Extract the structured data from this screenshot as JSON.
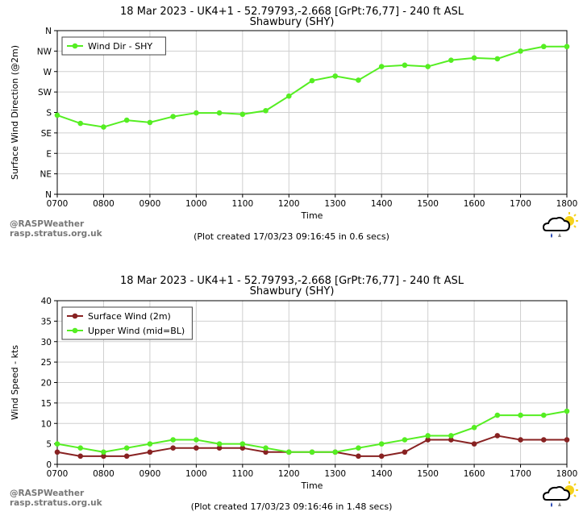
{
  "watermark": {
    "line1": "@RASPWeather",
    "line2": "rasp.stratus.org.uk"
  },
  "chart_data": [
    {
      "type": "line",
      "title": "18 Mar 2023 - UK4+1 - 52.79793,-2.668 [GrPt:76,77]  - 240 ft ASL",
      "subtitle": "Shawbury (SHY)",
      "xlabel": "Time",
      "ylabel": "Surface Wind Direction (@2m)",
      "x": [
        "0700",
        "0730",
        "0800",
        "0830",
        "0900",
        "0930",
        "1000",
        "1030",
        "1100",
        "1130",
        "1200",
        "1230",
        "1300",
        "1330",
        "1400",
        "1430",
        "1500",
        "1530",
        "1600",
        "1630",
        "1700",
        "1730",
        "1800"
      ],
      "x_tick_labels": [
        "0700",
        "0800",
        "0900",
        "1000",
        "1100",
        "1200",
        "1300",
        "1400",
        "1500",
        "1600",
        "1700",
        "1800"
      ],
      "ylim": [
        0,
        360
      ],
      "y_tick_values": [
        0,
        45,
        90,
        135,
        180,
        225,
        270,
        315,
        360
      ],
      "y_tick_labels": [
        "N",
        "NE",
        "E",
        "SE",
        "S",
        "SW",
        "W",
        "NW",
        "N"
      ],
      "grid": true,
      "legend_position": "top-left",
      "series": [
        {
          "name": "Wind Dir - SHY",
          "color": "#55ee22",
          "values": [
            174,
            156,
            148,
            163,
            158,
            171,
            179,
            179,
            176,
            184,
            216,
            250,
            260,
            251,
            281,
            284,
            281,
            295,
            300,
            298,
            315,
            325,
            325
          ]
        }
      ],
      "footer": "(Plot created 17/03/23 09:16:45 in 0.6 secs)"
    },
    {
      "type": "line",
      "title": "18 Mar 2023 - UK4+1 - 52.79793,-2.668 [GrPt:76,77]  - 240 ft ASL",
      "subtitle": "Shawbury (SHY)",
      "xlabel": "Time",
      "ylabel": "Wind Speed - kts",
      "x": [
        "0700",
        "0730",
        "0800",
        "0830",
        "0900",
        "0930",
        "1000",
        "1030",
        "1100",
        "1130",
        "1200",
        "1230",
        "1300",
        "1330",
        "1400",
        "1430",
        "1500",
        "1530",
        "1600",
        "1630",
        "1700",
        "1730",
        "1800"
      ],
      "x_tick_labels": [
        "0700",
        "0800",
        "0900",
        "1000",
        "1100",
        "1200",
        "1300",
        "1400",
        "1500",
        "1600",
        "1700",
        "1800"
      ],
      "ylim": [
        0,
        40
      ],
      "y_tick_values": [
        0,
        5,
        10,
        15,
        20,
        25,
        30,
        35,
        40
      ],
      "y_tick_labels": [
        "0",
        "5",
        "10",
        "15",
        "20",
        "25",
        "30",
        "35",
        "40"
      ],
      "grid": true,
      "legend_position": "top-left",
      "series": [
        {
          "name": "Surface Wind (2m)",
          "color": "#882222",
          "values": [
            3,
            2,
            2,
            2,
            3,
            4,
            4,
            4,
            4,
            3,
            3,
            3,
            3,
            2,
            2,
            3,
            6,
            6,
            5,
            7,
            6,
            6,
            6
          ]
        },
        {
          "name": "Upper Wind (mid=BL)",
          "color": "#55ee22",
          "values": [
            5,
            4,
            3,
            4,
            5,
            6,
            6,
            5,
            5,
            4,
            3,
            3,
            3,
            4,
            5,
            6,
            7,
            7,
            9,
            12,
            12,
            12,
            13
          ]
        }
      ],
      "footer": "(Plot created 17/03/23 09:16:46 in 1.48 secs)"
    }
  ]
}
